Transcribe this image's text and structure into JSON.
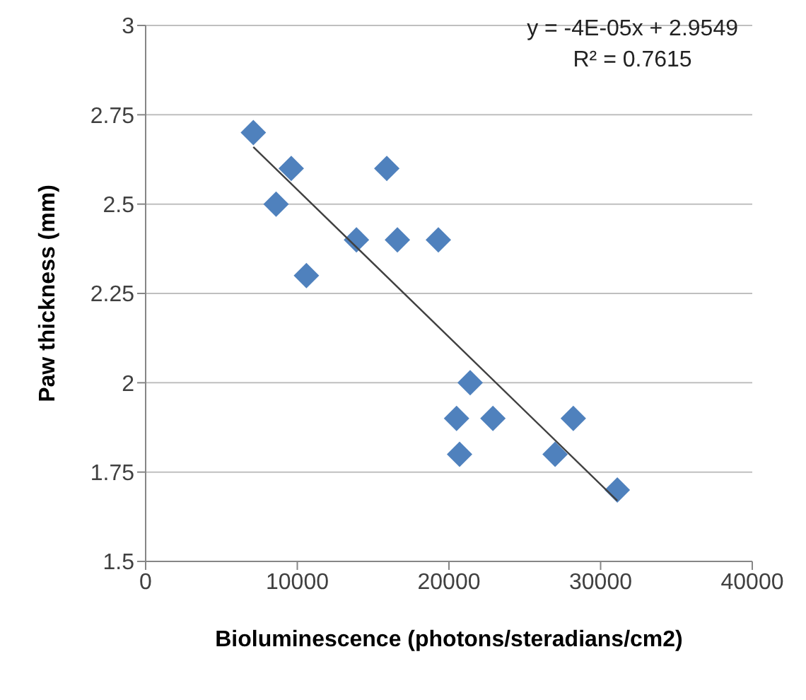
{
  "chart_data": {
    "type": "scatter",
    "xlabel": "Bioluminescence (photons/steradians/cm2)",
    "ylabel": "Paw thickness (mm)",
    "annotations": [
      "y = -4E-05x + 2.9549",
      "R² = 0.7615"
    ],
    "series": [
      {
        "color": "#4f81bd",
        "marker": "diamond",
        "x": [
          7100,
          9600,
          8600,
          10600,
          13900,
          15900,
          16600,
          19300,
          21400,
          20500,
          22900,
          20700,
          27000,
          28200,
          31100
        ],
        "values": [
          2.7,
          2.6,
          2.5,
          2.3,
          2.4,
          2.6,
          2.4,
          2.4,
          2.0,
          1.9,
          1.9,
          1.8,
          1.8,
          1.9,
          1.7
        ]
      },
      {
        "type": "line",
        "color": "#404040",
        "marker": "none",
        "x": [
          7100,
          31100
        ],
        "values": [
          2.66,
          1.67
        ]
      }
    ],
    "xlim": [
      0,
      40000
    ],
    "xticks": [
      0,
      10000,
      20000,
      30000,
      40000
    ],
    "ylim": [
      1.5,
      3
    ],
    "yticks": [
      1.5,
      1.75,
      2,
      2.25,
      2.5,
      2.75,
      3
    ],
    "grid": "y"
  }
}
